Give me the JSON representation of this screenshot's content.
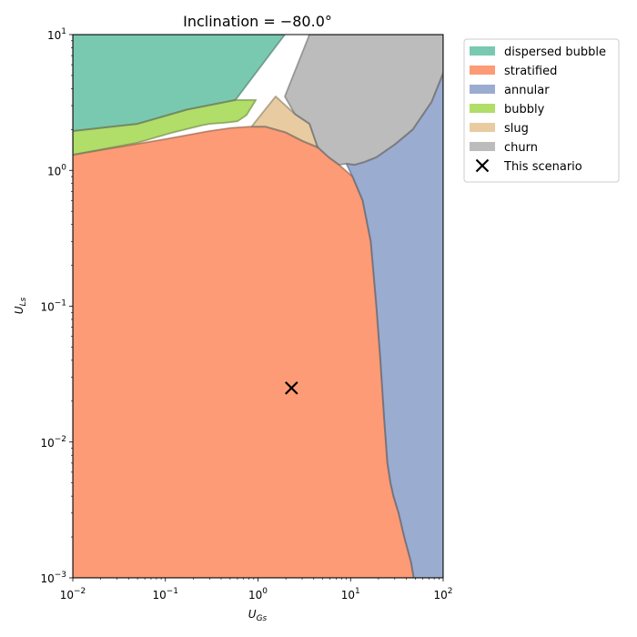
{
  "chart_data": {
    "type": "area",
    "title": "Inclination = −80.0°",
    "xlabel": "U_{Gs}",
    "ylabel": "U_{Ls}",
    "xscale": "log",
    "yscale": "log",
    "xlim": [
      0.01,
      100
    ],
    "ylim": [
      0.001,
      10
    ],
    "xticks": [
      {
        "base": "10",
        "exp": "−2",
        "value": 0.01
      },
      {
        "base": "10",
        "exp": "−1",
        "value": 0.1
      },
      {
        "base": "10",
        "exp": "0",
        "value": 1
      },
      {
        "base": "10",
        "exp": "1",
        "value": 10
      },
      {
        "base": "10",
        "exp": "2",
        "value": 100
      }
    ],
    "yticks": [
      {
        "base": "10",
        "exp": "−3",
        "value": 0.001
      },
      {
        "base": "10",
        "exp": "−2",
        "value": 0.01
      },
      {
        "base": "10",
        "exp": "−1",
        "value": 0.1
      },
      {
        "base": "10",
        "exp": "0",
        "value": 1
      },
      {
        "base": "10",
        "exp": "1",
        "value": 10
      }
    ],
    "grid": false,
    "legend_position": "outside-top-right",
    "regions": [
      {
        "name": "dispersed bubble",
        "color": "#66c2a5",
        "polygon": [
          [
            0.01,
            10
          ],
          [
            0.75,
            10
          ],
          [
            0.88,
            10
          ],
          [
            1.95,
            10
          ],
          [
            0.57,
            3.3
          ],
          [
            0.17,
            2.8
          ],
          [
            0.05,
            2.2
          ],
          [
            0.01,
            1.95
          ]
        ]
      },
      {
        "name": "stratified",
        "color": "#fc8d62",
        "polygon": [
          [
            0.01,
            1.3
          ],
          [
            0.1,
            1.7
          ],
          [
            0.3,
            1.95
          ],
          [
            0.5,
            2.05
          ],
          [
            0.8,
            2.1
          ],
          [
            1.2,
            2.1
          ],
          [
            2.0,
            1.9
          ],
          [
            3.0,
            1.65
          ],
          [
            4.4,
            1.48
          ],
          [
            5.8,
            1.25
          ],
          [
            7.5,
            1.1
          ],
          [
            10.5,
            0.9
          ],
          [
            13.5,
            0.6
          ],
          [
            16.5,
            0.3
          ],
          [
            19,
            0.1
          ],
          [
            21,
            0.04
          ],
          [
            23,
            0.015
          ],
          [
            25,
            0.007
          ],
          [
            27,
            0.005
          ],
          [
            29,
            0.004
          ],
          [
            33,
            0.003
          ],
          [
            38,
            0.002
          ],
          [
            45,
            0.0013
          ],
          [
            48,
            0.001
          ],
          [
            0.01,
            0.001
          ]
        ]
      },
      {
        "name": "annular",
        "color": "#8da0cb",
        "polygon": [
          [
            100,
            5.2
          ],
          [
            75,
            3.2
          ],
          [
            47,
            2.0
          ],
          [
            30,
            1.55
          ],
          [
            19,
            1.25
          ],
          [
            14,
            1.15
          ],
          [
            11,
            1.1
          ],
          [
            9,
            1.12
          ],
          [
            10.5,
            0.9
          ],
          [
            13.5,
            0.6
          ],
          [
            16.5,
            0.3
          ],
          [
            19,
            0.1
          ],
          [
            21,
            0.04
          ],
          [
            23,
            0.015
          ],
          [
            25,
            0.007
          ],
          [
            27,
            0.005
          ],
          [
            29,
            0.004
          ],
          [
            33,
            0.003
          ],
          [
            38,
            0.002
          ],
          [
            45,
            0.0013
          ],
          [
            48,
            0.001
          ],
          [
            100,
            0.001
          ]
        ]
      },
      {
        "name": "bubbly",
        "color": "#a6d854",
        "polygon": [
          [
            0.01,
            1.95
          ],
          [
            0.05,
            2.2
          ],
          [
            0.17,
            2.8
          ],
          [
            0.57,
            3.3
          ],
          [
            0.95,
            3.3
          ],
          [
            0.75,
            2.55
          ],
          [
            0.6,
            2.3
          ],
          [
            0.45,
            2.25
          ],
          [
            0.3,
            2.2
          ],
          [
            0.25,
            2.15
          ],
          [
            0.12,
            1.9
          ],
          [
            0.05,
            1.6
          ],
          [
            0.01,
            1.3
          ]
        ]
      },
      {
        "name": "slug",
        "color": "#e5c494",
        "polygon": [
          [
            1.55,
            3.5
          ],
          [
            2.5,
            2.6
          ],
          [
            3.6,
            2.2
          ],
          [
            4.4,
            1.48
          ],
          [
            3.0,
            1.65
          ],
          [
            2.0,
            1.9
          ],
          [
            1.2,
            2.1
          ],
          [
            0.85,
            2.1
          ]
        ]
      },
      {
        "name": "churn",
        "color": "#b3b3b3",
        "polygon": [
          [
            3.6,
            10
          ],
          [
            100,
            10
          ],
          [
            100,
            5.2
          ],
          [
            75,
            3.2
          ],
          [
            47,
            2.0
          ],
          [
            30,
            1.55
          ],
          [
            19,
            1.25
          ],
          [
            14,
            1.15
          ],
          [
            11,
            1.1
          ],
          [
            9,
            1.12
          ],
          [
            7.5,
            1.1
          ],
          [
            5.8,
            1.25
          ],
          [
            4.4,
            1.48
          ],
          [
            3.6,
            2.2
          ],
          [
            2.5,
            2.6
          ],
          [
            1.95,
            3.5
          ]
        ]
      }
    ],
    "legend": [
      {
        "label": "dispersed bubble",
        "kind": "patch",
        "color": "#66c2a5"
      },
      {
        "label": "stratified",
        "kind": "patch",
        "color": "#fc8d62"
      },
      {
        "label": "annular",
        "kind": "patch",
        "color": "#8da0cb"
      },
      {
        "label": "bubbly",
        "kind": "patch",
        "color": "#a6d854"
      },
      {
        "label": "slug",
        "kind": "patch",
        "color": "#e5c494"
      },
      {
        "label": "churn",
        "kind": "patch",
        "color": "#b3b3b3"
      },
      {
        "label": "This scenario",
        "kind": "marker",
        "color": "#000000"
      }
    ],
    "scenario_point": {
      "label": "This scenario",
      "x": 2.3,
      "y": 0.025,
      "marker": "x",
      "color": "#000000"
    }
  }
}
